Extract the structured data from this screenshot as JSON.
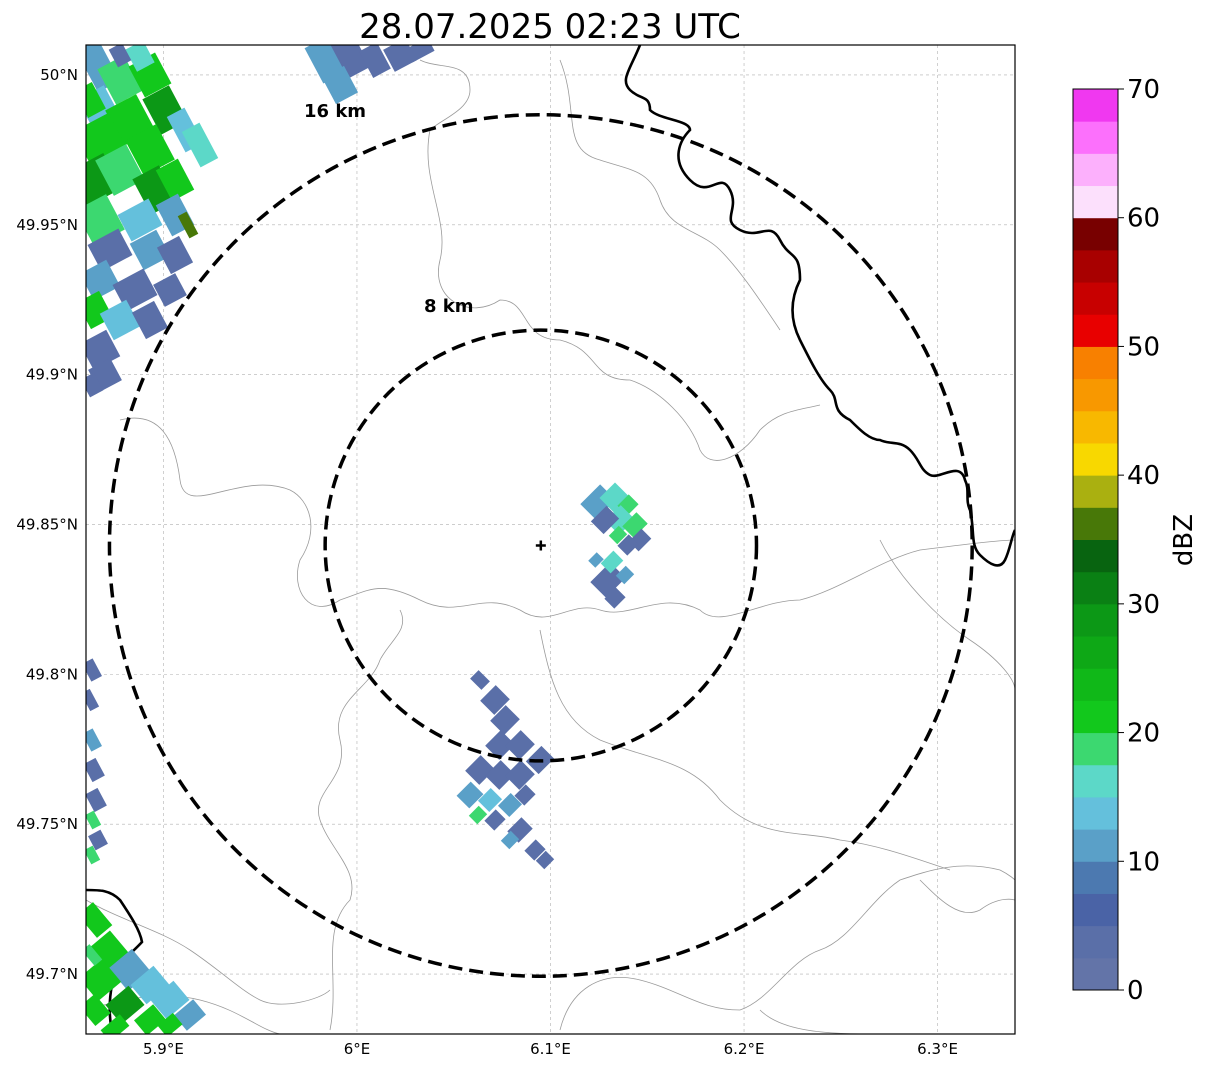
{
  "title": "28.07.2025 02:23 UTC",
  "map": {
    "lon_range": [
      5.86,
      6.34
    ],
    "lat_range": [
      49.68,
      50.01
    ],
    "lon_ticks": [
      {
        "value": 5.9,
        "label": "5.9°E"
      },
      {
        "value": 6.0,
        "label": "6°E"
      },
      {
        "value": 6.1,
        "label": "6.1°E"
      },
      {
        "value": 6.2,
        "label": "6.2°E"
      },
      {
        "value": 6.3,
        "label": "6.3°E"
      }
    ],
    "lat_ticks": [
      {
        "value": 50.0,
        "label": "50°N"
      },
      {
        "value": 49.95,
        "label": "49.95°N"
      },
      {
        "value": 49.9,
        "label": "49.9°N"
      },
      {
        "value": 49.85,
        "label": "49.85°N"
      },
      {
        "value": 49.8,
        "label": "49.8°N"
      },
      {
        "value": 49.75,
        "label": "49.75°N"
      },
      {
        "value": 49.7,
        "label": "49.7°N"
      }
    ],
    "radar_site": {
      "lon": 6.095,
      "lat": 49.843
    },
    "range_rings": [
      {
        "radius_km": 8,
        "label": "8 km"
      },
      {
        "radius_km": 16,
        "label": "16 km"
      }
    ],
    "gridlines": true
  },
  "colorbar": {
    "label": "dBZ",
    "min": 0,
    "max": 70,
    "tick_labels": [
      "0",
      "10",
      "20",
      "30",
      "40",
      "50",
      "60",
      "70"
    ],
    "colors": [
      "#6374a8",
      "#5a6fa8",
      "#4a63a6",
      "#4c79b0",
      "#5aa0c8",
      "#64c0dc",
      "#5cd8c8",
      "#3cd870",
      "#12c81c",
      "#10b818",
      "#0ea816",
      "#0c9816",
      "#0a8014",
      "#086410",
      "#487808",
      "#aab010",
      "#f8d800",
      "#f8b800",
      "#f89800",
      "#f88000",
      "#e80000",
      "#c80000",
      "#a80000",
      "#780000",
      "#fce0fc",
      "#fcb0fc",
      "#fc70fc",
      "#f038f0"
    ]
  },
  "echo_colors": {
    "weak": "#5a6fa8",
    "light": "#5aa0c8",
    "cyan": "#64c0dc",
    "teal": "#5cd8c8",
    "green_light": "#3cd870",
    "green": "#12c81c",
    "green_dark": "#0c9816",
    "olive": "#487808"
  }
}
